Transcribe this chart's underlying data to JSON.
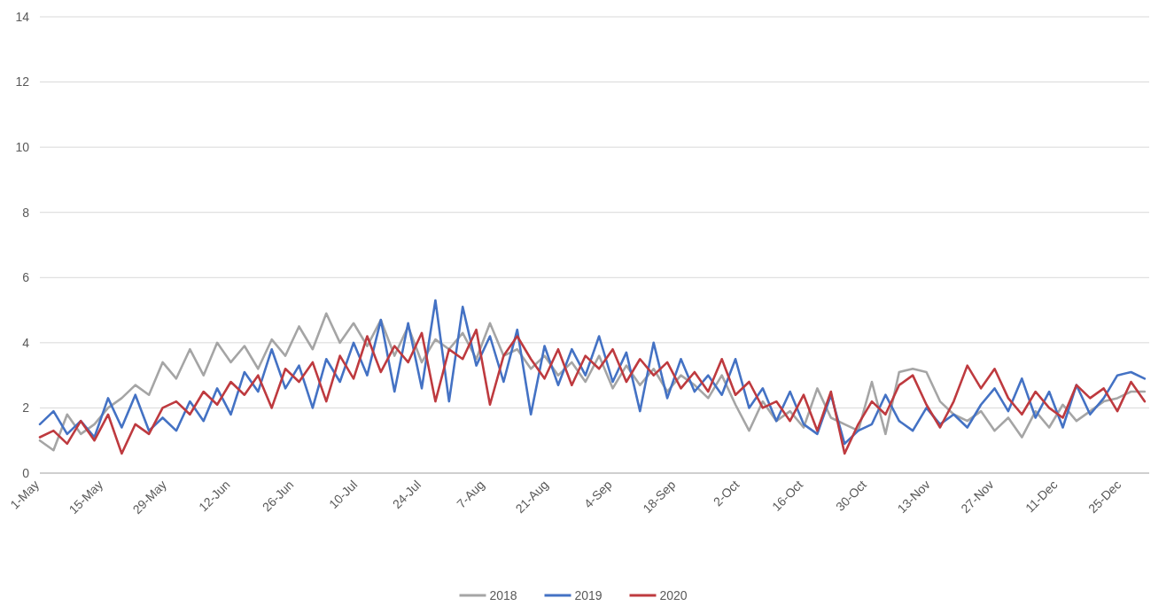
{
  "chart_data": {
    "type": "line",
    "x": [
      "--05-01",
      "--05-04",
      "--05-07",
      "--05-10",
      "--05-13",
      "--05-16",
      "--05-19",
      "--05-22",
      "--05-25",
      "--05-28",
      "--05-31",
      "--06-03",
      "--06-06",
      "--06-09",
      "--06-12",
      "--06-15",
      "--06-18",
      "--06-21",
      "--06-24",
      "--06-27",
      "--06-30",
      "--07-03",
      "--07-06",
      "--07-09",
      "--07-12",
      "--07-15",
      "--07-18",
      "--07-21",
      "--07-24",
      "--07-27",
      "--07-30",
      "--08-02",
      "--08-05",
      "--08-08",
      "--08-11",
      "--08-14",
      "--08-17",
      "--08-20",
      "--08-23",
      "--08-26",
      "--08-29",
      "--09-01",
      "--09-04",
      "--09-07",
      "--09-10",
      "--09-13",
      "--09-16",
      "--09-19",
      "--09-22",
      "--09-25",
      "--09-28",
      "--10-01",
      "--10-04",
      "--10-07",
      "--10-10",
      "--10-13",
      "--10-16",
      "--10-19",
      "--10-22",
      "--10-25",
      "--10-28",
      "--10-31",
      "--11-03",
      "--11-06",
      "--11-09",
      "--11-12",
      "--11-15",
      "--11-18",
      "--11-21",
      "--11-24",
      "--11-27",
      "--11-30",
      "--12-03",
      "--12-06",
      "--12-09",
      "--12-12",
      "--12-15",
      "--12-18",
      "--12-21",
      "--12-24",
      "--12-27",
      "--12-30"
    ],
    "series": [
      {
        "name": "2018",
        "color": "#a5a5a5",
        "values": [
          1.0,
          0.7,
          1.8,
          1.2,
          1.5,
          2.0,
          2.3,
          2.7,
          2.4,
          3.4,
          2.9,
          3.8,
          3.0,
          4.0,
          3.4,
          3.9,
          3.2,
          4.1,
          3.6,
          4.5,
          3.8,
          4.9,
          4.0,
          4.6,
          3.9,
          4.7,
          3.6,
          4.5,
          3.4,
          4.1,
          3.8,
          4.3,
          3.5,
          4.6,
          3.6,
          3.8,
          3.2,
          3.6,
          3.0,
          3.4,
          2.8,
          3.6,
          2.6,
          3.3,
          2.7,
          3.2,
          2.5,
          3.0,
          2.7,
          2.3,
          3.0,
          2.1,
          1.3,
          2.2,
          1.6,
          1.9,
          1.4,
          2.6,
          1.7,
          1.5,
          1.3,
          2.8,
          1.2,
          3.1,
          3.2,
          3.1,
          2.2,
          1.8,
          1.6,
          1.9,
          1.3,
          1.7,
          1.1,
          1.9,
          1.4,
          2.1,
          1.6,
          1.9,
          2.2,
          2.3,
          2.5,
          2.5
        ]
      },
      {
        "name": "2019",
        "color": "#4472c4",
        "values": [
          1.5,
          1.9,
          1.2,
          1.6,
          1.1,
          2.3,
          1.4,
          2.4,
          1.3,
          1.7,
          1.3,
          2.2,
          1.6,
          2.6,
          1.8,
          3.1,
          2.5,
          3.8,
          2.6,
          3.3,
          2.0,
          3.5,
          2.8,
          4.0,
          3.0,
          4.7,
          2.5,
          4.6,
          2.6,
          5.3,
          2.2,
          5.1,
          3.3,
          4.2,
          2.8,
          4.4,
          1.8,
          3.9,
          2.7,
          3.8,
          3.0,
          4.2,
          2.8,
          3.7,
          1.9,
          4.0,
          2.3,
          3.5,
          2.5,
          3.0,
          2.4,
          3.5,
          2.0,
          2.6,
          1.6,
          2.5,
          1.5,
          1.2,
          2.4,
          0.9,
          1.3,
          1.5,
          2.4,
          1.6,
          1.3,
          2.0,
          1.5,
          1.8,
          1.4,
          2.1,
          2.6,
          1.9,
          2.9,
          1.7,
          2.5,
          1.4,
          2.7,
          1.8,
          2.3,
          3.0,
          3.1,
          2.9
        ]
      },
      {
        "name": "2020",
        "color": "#be3a3f",
        "values": [
          1.1,
          1.3,
          0.9,
          1.6,
          1.0,
          1.8,
          0.6,
          1.5,
          1.2,
          2.0,
          2.2,
          1.8,
          2.5,
          2.1,
          2.8,
          2.4,
          3.0,
          2.0,
          3.2,
          2.8,
          3.4,
          2.2,
          3.6,
          2.9,
          4.2,
          3.1,
          3.9,
          3.4,
          4.3,
          2.2,
          3.8,
          3.5,
          4.4,
          2.1,
          3.6,
          4.2,
          3.5,
          2.9,
          3.8,
          2.7,
          3.6,
          3.2,
          3.8,
          2.8,
          3.5,
          3.0,
          3.4,
          2.6,
          3.1,
          2.5,
          3.5,
          2.4,
          2.8,
          2.0,
          2.2,
          1.6,
          2.4,
          1.3,
          2.5,
          0.6,
          1.5,
          2.2,
          1.8,
          2.7,
          3.0,
          2.1,
          1.4,
          2.2,
          3.3,
          2.6,
          3.2,
          2.3,
          1.8,
          2.5,
          2.0,
          1.7,
          2.7,
          2.3,
          2.6,
          1.9,
          2.8,
          2.2
        ]
      }
    ],
    "xlim": [
      "--05-01",
      "--12-31"
    ],
    "xticks": [
      {
        "value": "--05-01",
        "label": "1-May"
      },
      {
        "value": "--05-15",
        "label": "15-May"
      },
      {
        "value": "--05-29",
        "label": "29-May"
      },
      {
        "value": "--06-12",
        "label": "12-Jun"
      },
      {
        "value": "--06-26",
        "label": "26-Jun"
      },
      {
        "value": "--07-10",
        "label": "10-Jul"
      },
      {
        "value": "--07-24",
        "label": "24-Jul"
      },
      {
        "value": "--08-07",
        "label": "7-Aug"
      },
      {
        "value": "--08-21",
        "label": "21-Aug"
      },
      {
        "value": "--09-04",
        "label": "4-Sep"
      },
      {
        "value": "--09-18",
        "label": "18-Sep"
      },
      {
        "value": "--10-02",
        "label": "2-Oct"
      },
      {
        "value": "--10-16",
        "label": "16-Oct"
      },
      {
        "value": "--10-30",
        "label": "30-Oct"
      },
      {
        "value": "--11-13",
        "label": "13-Nov"
      },
      {
        "value": "--11-27",
        "label": "27-Nov"
      },
      {
        "value": "--12-11",
        "label": "11-Dec"
      },
      {
        "value": "--12-25",
        "label": "25-Dec"
      }
    ],
    "ylim": [
      0,
      14
    ],
    "yticks": [
      0,
      2,
      4,
      6,
      8,
      10,
      12,
      14
    ],
    "grid": "y",
    "legend": "bottom",
    "line_style": "solid",
    "marker": "none"
  }
}
